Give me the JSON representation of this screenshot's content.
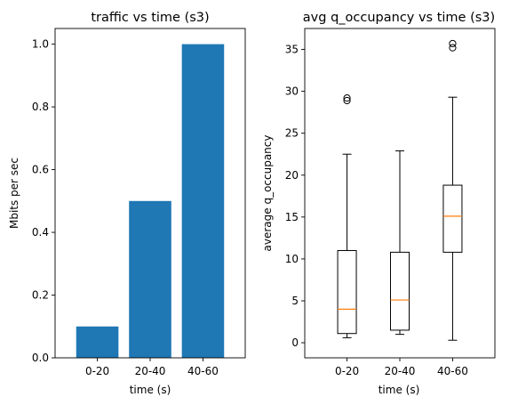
{
  "chart_data": [
    {
      "type": "bar",
      "title": "traffic vs time (s3)",
      "xlabel": "time (s)",
      "ylabel": "Mbits per sec",
      "categories": [
        "0-20",
        "20-40",
        "40-60"
      ],
      "values": [
        0.1,
        0.5,
        1.0
      ],
      "ylim": [
        0,
        1.05
      ],
      "yticks": [
        0.0,
        0.2,
        0.4,
        0.6,
        0.8,
        1.0
      ],
      "ytick_labels": [
        "0.0",
        "0.2",
        "0.4",
        "0.6",
        "0.8",
        "1.0"
      ],
      "color": "#1f77b4",
      "grid": false
    },
    {
      "type": "box",
      "title": "avg q_occupancy vs time (s3)",
      "xlabel": "time (s)",
      "ylabel": "average q_occupancy",
      "categories": [
        "0-20",
        "20-40",
        "40-60"
      ],
      "boxes": [
        {
          "whisker_low": 0.6,
          "q1": 1.1,
          "median": 4.0,
          "q3": 11.0,
          "whisker_high": 22.5,
          "outliers": [
            28.9,
            29.2
          ]
        },
        {
          "whisker_low": 1.0,
          "q1": 1.5,
          "median": 5.1,
          "q3": 10.8,
          "whisker_high": 22.9,
          "outliers": []
        },
        {
          "whisker_low": 0.3,
          "q1": 10.8,
          "median": 15.1,
          "q3": 18.8,
          "whisker_high": 29.3,
          "outliers": [
            35.2,
            35.7
          ]
        }
      ],
      "ylim": [
        -1.8,
        37.5
      ],
      "yticks": [
        0,
        5,
        10,
        15,
        20,
        25,
        30,
        35
      ],
      "ytick_labels": [
        "0",
        "5",
        "10",
        "15",
        "20",
        "25",
        "30",
        "35"
      ],
      "median_color": "#ff7f0e",
      "grid": false
    }
  ]
}
